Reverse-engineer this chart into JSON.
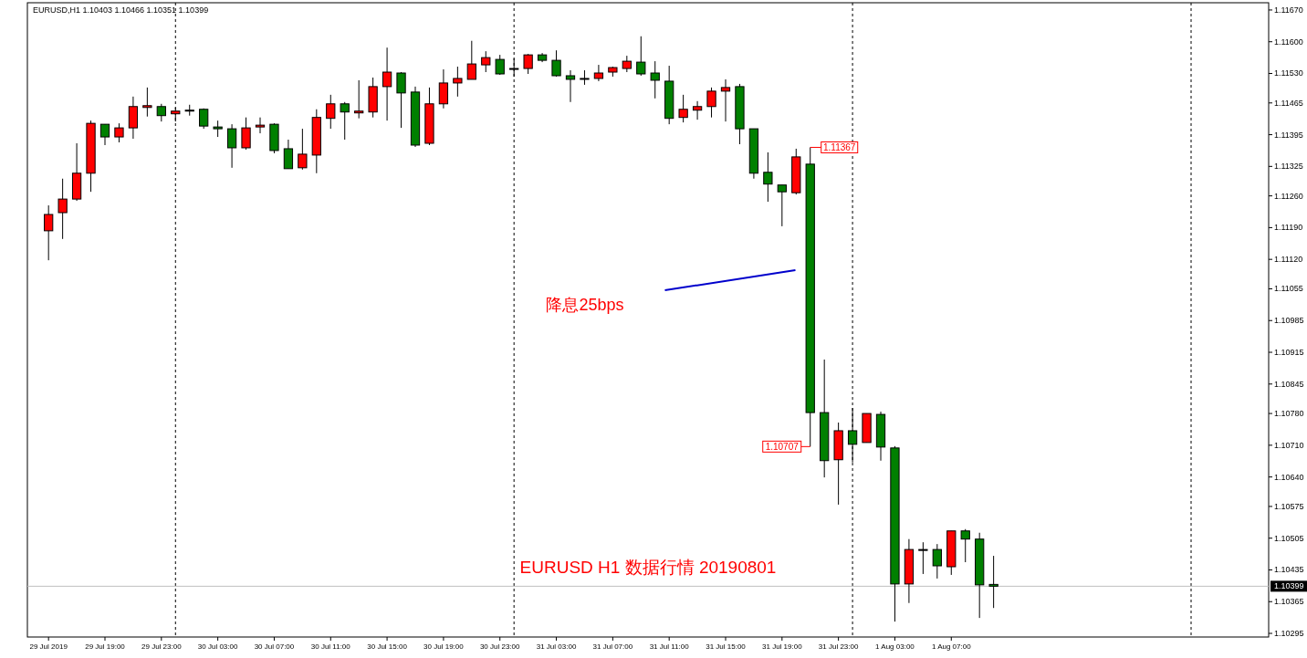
{
  "chart_data": {
    "type": "candlestick",
    "title": "EURUSD,H1  1.10403 1.10466 1.10351 1.10399",
    "x": [
      "2019-07-29T15:00",
      "2019-07-29T16:00",
      "2019-07-29T17:00",
      "2019-07-29T18:00",
      "2019-07-29T19:00",
      "2019-07-29T20:00",
      "2019-07-29T21:00",
      "2019-07-29T22:00",
      "2019-07-29T23:00",
      "2019-07-30T00:00",
      "2019-07-30T01:00",
      "2019-07-30T02:00",
      "2019-07-30T03:00",
      "2019-07-30T04:00",
      "2019-07-30T05:00",
      "2019-07-30T06:00",
      "2019-07-30T07:00",
      "2019-07-30T08:00",
      "2019-07-30T09:00",
      "2019-07-30T10:00",
      "2019-07-30T11:00",
      "2019-07-30T12:00",
      "2019-07-30T13:00",
      "2019-07-30T14:00",
      "2019-07-30T15:00",
      "2019-07-30T16:00",
      "2019-07-30T17:00",
      "2019-07-30T18:00",
      "2019-07-30T19:00",
      "2019-07-30T20:00",
      "2019-07-30T21:00",
      "2019-07-30T22:00",
      "2019-07-30T23:00",
      "2019-07-31T00:00",
      "2019-07-31T01:00",
      "2019-07-31T02:00",
      "2019-07-31T03:00",
      "2019-07-31T04:00",
      "2019-07-31T05:00",
      "2019-07-31T06:00",
      "2019-07-31T07:00",
      "2019-07-31T08:00",
      "2019-07-31T09:00",
      "2019-07-31T10:00",
      "2019-07-31T11:00",
      "2019-07-31T12:00",
      "2019-07-31T13:00",
      "2019-07-31T14:00",
      "2019-07-31T15:00",
      "2019-07-31T16:00",
      "2019-07-31T17:00",
      "2019-07-31T18:00",
      "2019-07-31T19:00",
      "2019-07-31T20:00",
      "2019-07-31T21:00",
      "2019-07-31T22:00",
      "2019-07-31T23:00",
      "2019-08-01T00:00",
      "2019-08-01T01:00",
      "2019-08-01T02:00",
      "2019-08-01T03:00",
      "2019-08-01T04:00",
      "2019-08-01T05:00",
      "2019-08-01T06:00",
      "2019-08-01T07:00",
      "2019-08-01T08:00",
      "2019-08-01T09:00",
      "2019-08-01T10:00"
    ],
    "ohlc": [
      [
        1.11183,
        1.11239,
        1.11118,
        1.11219
      ],
      [
        1.11223,
        1.11298,
        1.11165,
        1.11253
      ],
      [
        1.11253,
        1.11376,
        1.11249,
        1.1131
      ],
      [
        1.1131,
        1.11426,
        1.11269,
        1.1142
      ],
      [
        1.11418,
        1.11418,
        1.11372,
        1.1139
      ],
      [
        1.1139,
        1.1142,
        1.11378,
        1.1141
      ],
      [
        1.1141,
        1.11479,
        1.11386,
        1.11457
      ],
      [
        1.11455,
        1.11499,
        1.11435,
        1.11459
      ],
      [
        1.11457,
        1.11463,
        1.11424,
        1.11437
      ],
      [
        1.11441,
        1.11455,
        1.11424,
        1.11447
      ],
      [
        1.11449,
        1.11461,
        1.11437,
        1.11449
      ],
      [
        1.11451,
        1.11453,
        1.11408,
        1.11414
      ],
      [
        1.11412,
        1.11426,
        1.1139,
        1.11408
      ],
      [
        1.11408,
        1.11418,
        1.11322,
        1.11366
      ],
      [
        1.11366,
        1.11433,
        1.11362,
        1.1141
      ],
      [
        1.11412,
        1.11433,
        1.11398,
        1.11416
      ],
      [
        1.11418,
        1.1142,
        1.11354,
        1.1136
      ],
      [
        1.11364,
        1.11384,
        1.1132,
        1.1132
      ],
      [
        1.11322,
        1.11408,
        1.11318,
        1.11352
      ],
      [
        1.1135,
        1.11451,
        1.1131,
        1.11433
      ],
      [
        1.11431,
        1.11483,
        1.11408,
        1.11463
      ],
      [
        1.11463,
        1.11467,
        1.11384,
        1.11445
      ],
      [
        1.11443,
        1.11515,
        1.11431,
        1.11447
      ],
      [
        1.11445,
        1.11521,
        1.11433,
        1.11501
      ],
      [
        1.11501,
        1.11587,
        1.11426,
        1.11533
      ],
      [
        1.11531,
        1.11533,
        1.1141,
        1.11487
      ],
      [
        1.11489,
        1.11501,
        1.11368,
        1.11372
      ],
      [
        1.11376,
        1.11499,
        1.11372,
        1.11463
      ],
      [
        1.11463,
        1.11539,
        1.11453,
        1.11509
      ],
      [
        1.11509,
        1.11545,
        1.11479,
        1.11519
      ],
      [
        1.11517,
        1.11602,
        1.11517,
        1.11551
      ],
      [
        1.11549,
        1.11579,
        1.11533,
        1.11565
      ],
      [
        1.11561,
        1.11571,
        1.11527,
        1.11529
      ],
      [
        1.11541,
        1.11563,
        1.11523,
        1.11541
      ],
      [
        1.11541,
        1.11573,
        1.11529,
        1.11571
      ],
      [
        1.11571,
        1.11575,
        1.11555,
        1.11559
      ],
      [
        1.11559,
        1.11581,
        1.11523,
        1.11525
      ],
      [
        1.11525,
        1.11537,
        1.11467,
        1.11517
      ],
      [
        1.11519,
        1.11537,
        1.11505,
        1.11519
      ],
      [
        1.11519,
        1.11549,
        1.11513,
        1.11531
      ],
      [
        1.11533,
        1.11545,
        1.11523,
        1.11543
      ],
      [
        1.11541,
        1.11569,
        1.11533,
        1.11557
      ],
      [
        1.11555,
        1.11612,
        1.11525,
        1.11529
      ],
      [
        1.11531,
        1.11557,
        1.11475,
        1.11515
      ],
      [
        1.11513,
        1.11547,
        1.11418,
        1.11431
      ],
      [
        1.11433,
        1.11483,
        1.11422,
        1.11451
      ],
      [
        1.11449,
        1.11469,
        1.11428,
        1.11457
      ],
      [
        1.11457,
        1.11499,
        1.11433,
        1.11491
      ],
      [
        1.11491,
        1.11517,
        1.11424,
        1.11499
      ],
      [
        1.11501,
        1.11507,
        1.11374,
        1.11408
      ],
      [
        1.11408,
        1.11408,
        1.11298,
        1.1131
      ],
      [
        1.11312,
        1.11356,
        1.11247,
        1.11286
      ],
      [
        1.11284,
        1.11284,
        1.11193,
        1.11269
      ],
      [
        1.11267,
        1.11364,
        1.11263,
        1.11346
      ],
      [
        1.1133,
        1.11367,
        1.10707,
        1.10782
      ],
      [
        1.10782,
        1.10899,
        1.10639,
        1.10676
      ],
      [
        1.10678,
        1.1076,
        1.10579,
        1.10742
      ],
      [
        1.10742,
        1.10792,
        1.10672,
        1.10712
      ],
      [
        1.10716,
        1.1078,
        1.10716,
        1.1078
      ],
      [
        1.10778,
        1.10784,
        1.10676,
        1.10706
      ],
      [
        1.10704,
        1.10708,
        1.10321,
        1.10404
      ],
      [
        1.10404,
        1.10503,
        1.10362,
        1.1048
      ],
      [
        1.1048,
        1.10496,
        1.10426,
        1.1048
      ],
      [
        1.1048,
        1.10492,
        1.10416,
        1.10444
      ],
      [
        1.10442,
        1.10521,
        1.10424,
        1.10521
      ],
      [
        1.10521,
        1.10525,
        1.10452,
        1.10503
      ],
      [
        1.10503,
        1.10517,
        1.10329,
        1.10402
      ],
      [
        1.10403,
        1.10466,
        1.10351,
        1.10399
      ]
    ],
    "colors": [
      "#ff0000",
      "#ff0000",
      "#ff0000",
      "#ff0000",
      "#008000",
      "#ff0000",
      "#ff0000",
      "#ff0000",
      "#008000",
      "#ff0000",
      "#000000",
      "#008000",
      "#008000",
      "#008000",
      "#ff0000",
      "#ff0000",
      "#008000",
      "#008000",
      "#ff0000",
      "#ff0000",
      "#ff0000",
      "#008000",
      "#ff0000",
      "#ff0000",
      "#ff0000",
      "#008000",
      "#008000",
      "#ff0000",
      "#ff0000",
      "#ff0000",
      "#ff0000",
      "#ff0000",
      "#008000",
      "#000000",
      "#ff0000",
      "#008000",
      "#008000",
      "#008000",
      "#000000",
      "#ff0000",
      "#ff0000",
      "#ff0000",
      "#008000",
      "#008000",
      "#008000",
      "#ff0000",
      "#ff0000",
      "#ff0000",
      "#ff0000",
      "#008000",
      "#008000",
      "#008000",
      "#008000",
      "#ff0000",
      "#008000",
      "#008000",
      "#ff0000",
      "#008000",
      "#ff0000",
      "#008000",
      "#008000",
      "#ff0000",
      "#000000",
      "#008000",
      "#ff0000",
      "#008000",
      "#008000",
      "#008000"
    ],
    "xlim": [
      "2019-07-29T13:30",
      "2019-08-02T05:30"
    ],
    "xticks": [
      {
        "value": "2019-07-29T15:00",
        "label": "29 Jul 2019"
      },
      {
        "value": "2019-07-29T19:00",
        "label": "29 Jul 19:00"
      },
      {
        "value": "2019-07-29T23:00",
        "label": "29 Jul 23:00"
      },
      {
        "value": "2019-07-30T03:00",
        "label": "30 Jul 03:00"
      },
      {
        "value": "2019-07-30T07:00",
        "label": "30 Jul 07:00"
      },
      {
        "value": "2019-07-30T11:00",
        "label": "30 Jul 11:00"
      },
      {
        "value": "2019-07-30T15:00",
        "label": "30 Jul 15:00"
      },
      {
        "value": "2019-07-30T19:00",
        "label": "30 Jul 19:00"
      },
      {
        "value": "2019-07-30T23:00",
        "label": "30 Jul 23:00"
      },
      {
        "value": "2019-07-31T03:00",
        "label": "31 Jul 03:00"
      },
      {
        "value": "2019-07-31T07:00",
        "label": "31 Jul 07:00"
      },
      {
        "value": "2019-07-31T11:00",
        "label": "31 Jul 11:00"
      },
      {
        "value": "2019-07-31T15:00",
        "label": "31 Jul 15:00"
      },
      {
        "value": "2019-07-31T19:00",
        "label": "31 Jul 19:00"
      },
      {
        "value": "2019-07-31T23:00",
        "label": "31 Jul 23:00"
      },
      {
        "value": "2019-08-01T03:00",
        "label": "1 Aug 03:00"
      },
      {
        "value": "2019-08-01T07:00",
        "label": "1 Aug 07:00"
      }
    ],
    "ylim": [
      1.10287,
      1.11686
    ],
    "yticks": [
      1.10295,
      1.10365,
      1.10435,
      1.10505,
      1.10575,
      {
        "value": 1.1064,
        "label": "1.10640"
      },
      {
        "value": 1.1071,
        "label": "1.10710"
      },
      {
        "value": 1.1078,
        "label": "1.10780"
      },
      1.10845,
      1.10915,
      1.10985,
      1.11055,
      {
        "value": 1.1112,
        "label": "1.11120"
      },
      {
        "value": 1.1119,
        "label": "1.11190"
      },
      {
        "value": 1.1126,
        "label": "1.11260"
      },
      1.11325,
      1.11395,
      1.11465,
      {
        "value": 1.1153,
        "label": "1.11530"
      },
      {
        "value": 1.116,
        "label": "1.11600"
      },
      {
        "value": 1.1167,
        "label": "1.11670"
      }
    ],
    "ref_lines": [
      {
        "axis": "x",
        "value": "2019-07-30T00:00",
        "color": "#000000",
        "line_style": "dashed"
      },
      {
        "axis": "x",
        "value": "2019-07-31T00:00",
        "color": "#000000",
        "line_style": "dashed"
      },
      {
        "axis": "x",
        "value": "2019-08-01T00:00",
        "color": "#000000",
        "line_style": "dashed"
      },
      {
        "axis": "x",
        "value": "2019-08-02T00:00",
        "color": "#000000",
        "line_style": "dashed"
      },
      {
        "axis": "y",
        "value": 1.10399,
        "label": "1.10399",
        "color": "#c0c0c0",
        "line_style": "solid"
      }
    ],
    "annotations": [
      {
        "text": "1.11367",
        "x": "2019-07-31T21:00",
        "y": 1.11367
      },
      {
        "text": "1.10707",
        "x": "2019-07-31T21:00",
        "y": 1.10707
      },
      "降息25bps",
      "EURUSD  H1  数据行情  20190801"
    ]
  }
}
